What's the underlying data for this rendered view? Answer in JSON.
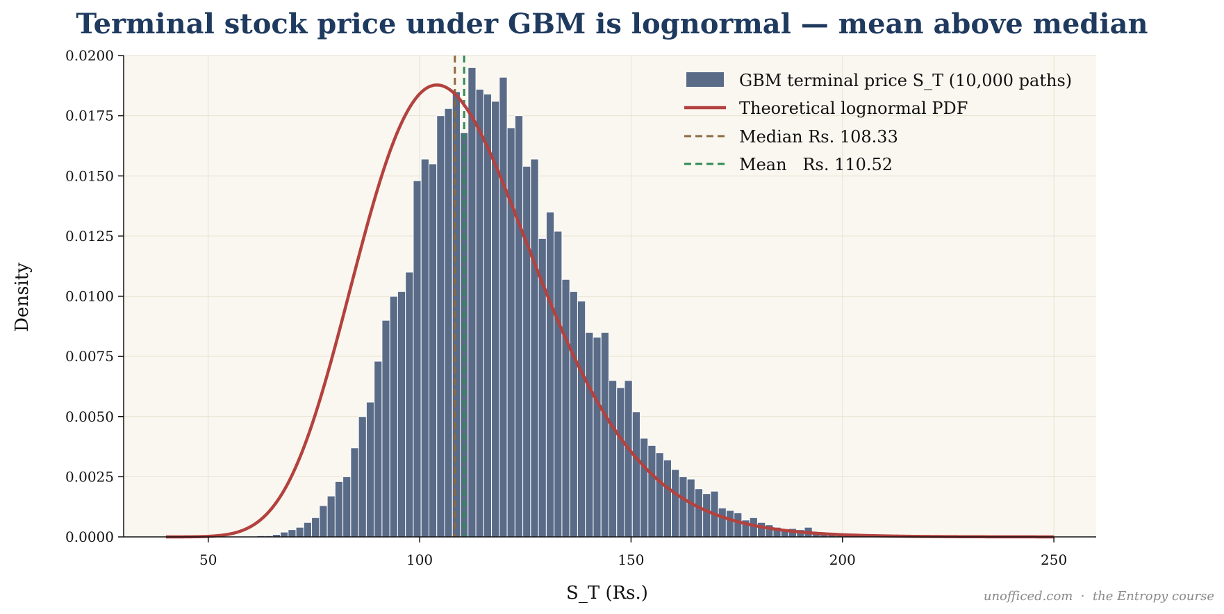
{
  "chart_data": {
    "type": "bar",
    "title": "Terminal stock price under GBM is lognormal — mean above median",
    "xlabel": "S_T (Rs.)",
    "ylabel": "Density",
    "xlim": [
      30,
      260
    ],
    "ylim": [
      0,
      0.02
    ],
    "xticks": [
      50,
      100,
      150,
      200,
      250
    ],
    "yticks": [
      0,
      0.0025,
      0.005,
      0.0075,
      0.01,
      0.0125,
      0.015,
      0.0175,
      0.02
    ],
    "ytick_labels": [
      "0.0000",
      "0.0025",
      "0.0050",
      "0.0075",
      "0.0100",
      "0.0125",
      "0.0150",
      "0.0175",
      "0.0200"
    ],
    "grid": true,
    "legend_position": "top-right",
    "histogram": {
      "name": "GBM terminal price S_T (10,000 paths)",
      "color": "#5a6b87",
      "bin_start": 39.3,
      "bin_width": 1.85,
      "densities": [
        0,
        0,
        0,
        0,
        0,
        0,
        0,
        0,
        0,
        0,
        1e-05,
        3e-05,
        5e-05,
        5e-05,
        0.0001,
        0.0002,
        0.0003,
        0.0004,
        0.0006,
        0.0008,
        0.0013,
        0.0017,
        0.0023,
        0.0025,
        0.0037,
        0.005,
        0.0056,
        0.0073,
        0.009,
        0.01,
        0.0102,
        0.011,
        0.0148,
        0.0157,
        0.0155,
        0.0175,
        0.0178,
        0.0185,
        0.0168,
        0.0195,
        0.0186,
        0.0184,
        0.0181,
        0.0191,
        0.017,
        0.0175,
        0.0154,
        0.0157,
        0.0124,
        0.0135,
        0.0127,
        0.0107,
        0.0102,
        0.0098,
        0.0085,
        0.0083,
        0.0085,
        0.0065,
        0.0062,
        0.0065,
        0.0052,
        0.0041,
        0.0038,
        0.0035,
        0.0032,
        0.0028,
        0.0025,
        0.0024,
        0.002,
        0.0018,
        0.0019,
        0.0012,
        0.0011,
        0.001,
        0.0007,
        0.0008,
        0.0006,
        0.0005,
        0.0004,
        0.0003,
        0.00035,
        0.0003,
        0.0004,
        0.0002,
        0.0002,
        0.00015,
        0.0001,
        0.0001,
        8e-05,
        5e-05,
        5e-05,
        4e-05,
        3e-05,
        2e-05,
        2e-05,
        1e-05
      ]
    },
    "pdf": {
      "name": "Theoretical lognormal PDF",
      "color": "#b3423f",
      "x_min": 40,
      "x_max": 250,
      "median": 108.33,
      "mean": 110.52
    },
    "median_line": {
      "name": "Median Rs. 108.33",
      "x": 108.33,
      "color": "#8c6a3f"
    },
    "mean_line": {
      "name": "Mean   Rs. 110.52",
      "x": 110.52,
      "color": "#2e8b57"
    },
    "colors": {
      "title": "#1f3a5f",
      "plot_bg": "#faf7f0",
      "grid": "#e8e2d2"
    }
  },
  "credit": "unofficed.com  ·  the Entropy course"
}
